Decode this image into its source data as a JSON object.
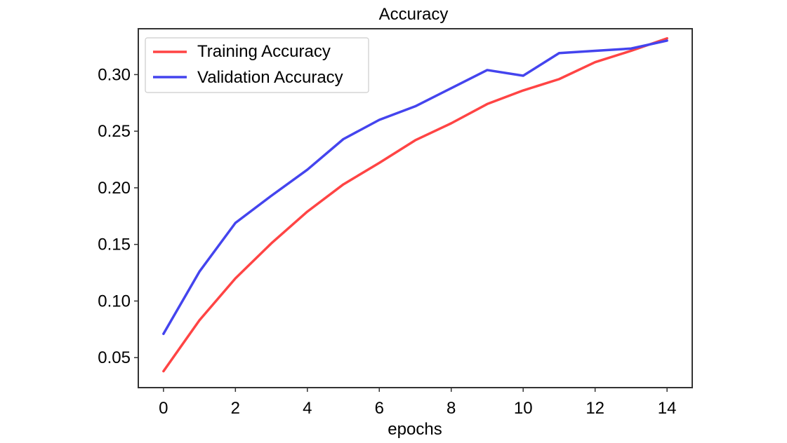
{
  "chart_data": {
    "type": "line",
    "title": "Accuracy",
    "xlabel": "epochs",
    "ylabel": "",
    "x": [
      0,
      1,
      2,
      3,
      4,
      5,
      6,
      7,
      8,
      9,
      10,
      11,
      12,
      13,
      14
    ],
    "xlim": [
      -0.7,
      14.7
    ],
    "ylim": [
      0.0235,
      0.3405
    ],
    "xticks": [
      0,
      2,
      4,
      6,
      8,
      10,
      12,
      14
    ],
    "xtick_labels": [
      "0",
      "2",
      "4",
      "6",
      "8",
      "10",
      "12",
      "14"
    ],
    "yticks": [
      0.05,
      0.1,
      0.15,
      0.2,
      0.25,
      0.3
    ],
    "ytick_labels": [
      "0.05",
      "0.10",
      "0.15",
      "0.20",
      "0.25",
      "0.30"
    ],
    "grid": false,
    "legend": {
      "position": "top-left",
      "entries": [
        "Training Accuracy",
        "Validation Accuracy"
      ]
    },
    "series": [
      {
        "name": "Training Accuracy",
        "color": "#ff4444",
        "values": [
          0.038,
          0.083,
          0.12,
          0.151,
          0.179,
          0.203,
          0.222,
          0.242,
          0.257,
          0.274,
          0.286,
          0.296,
          0.311,
          0.321,
          0.332
        ]
      },
      {
        "name": "Validation Accuracy",
        "color": "#4444ee",
        "values": [
          0.071,
          0.126,
          0.169,
          0.193,
          0.216,
          0.243,
          0.26,
          0.272,
          0.288,
          0.304,
          0.299,
          0.319,
          0.321,
          0.323,
          0.33
        ]
      }
    ]
  }
}
